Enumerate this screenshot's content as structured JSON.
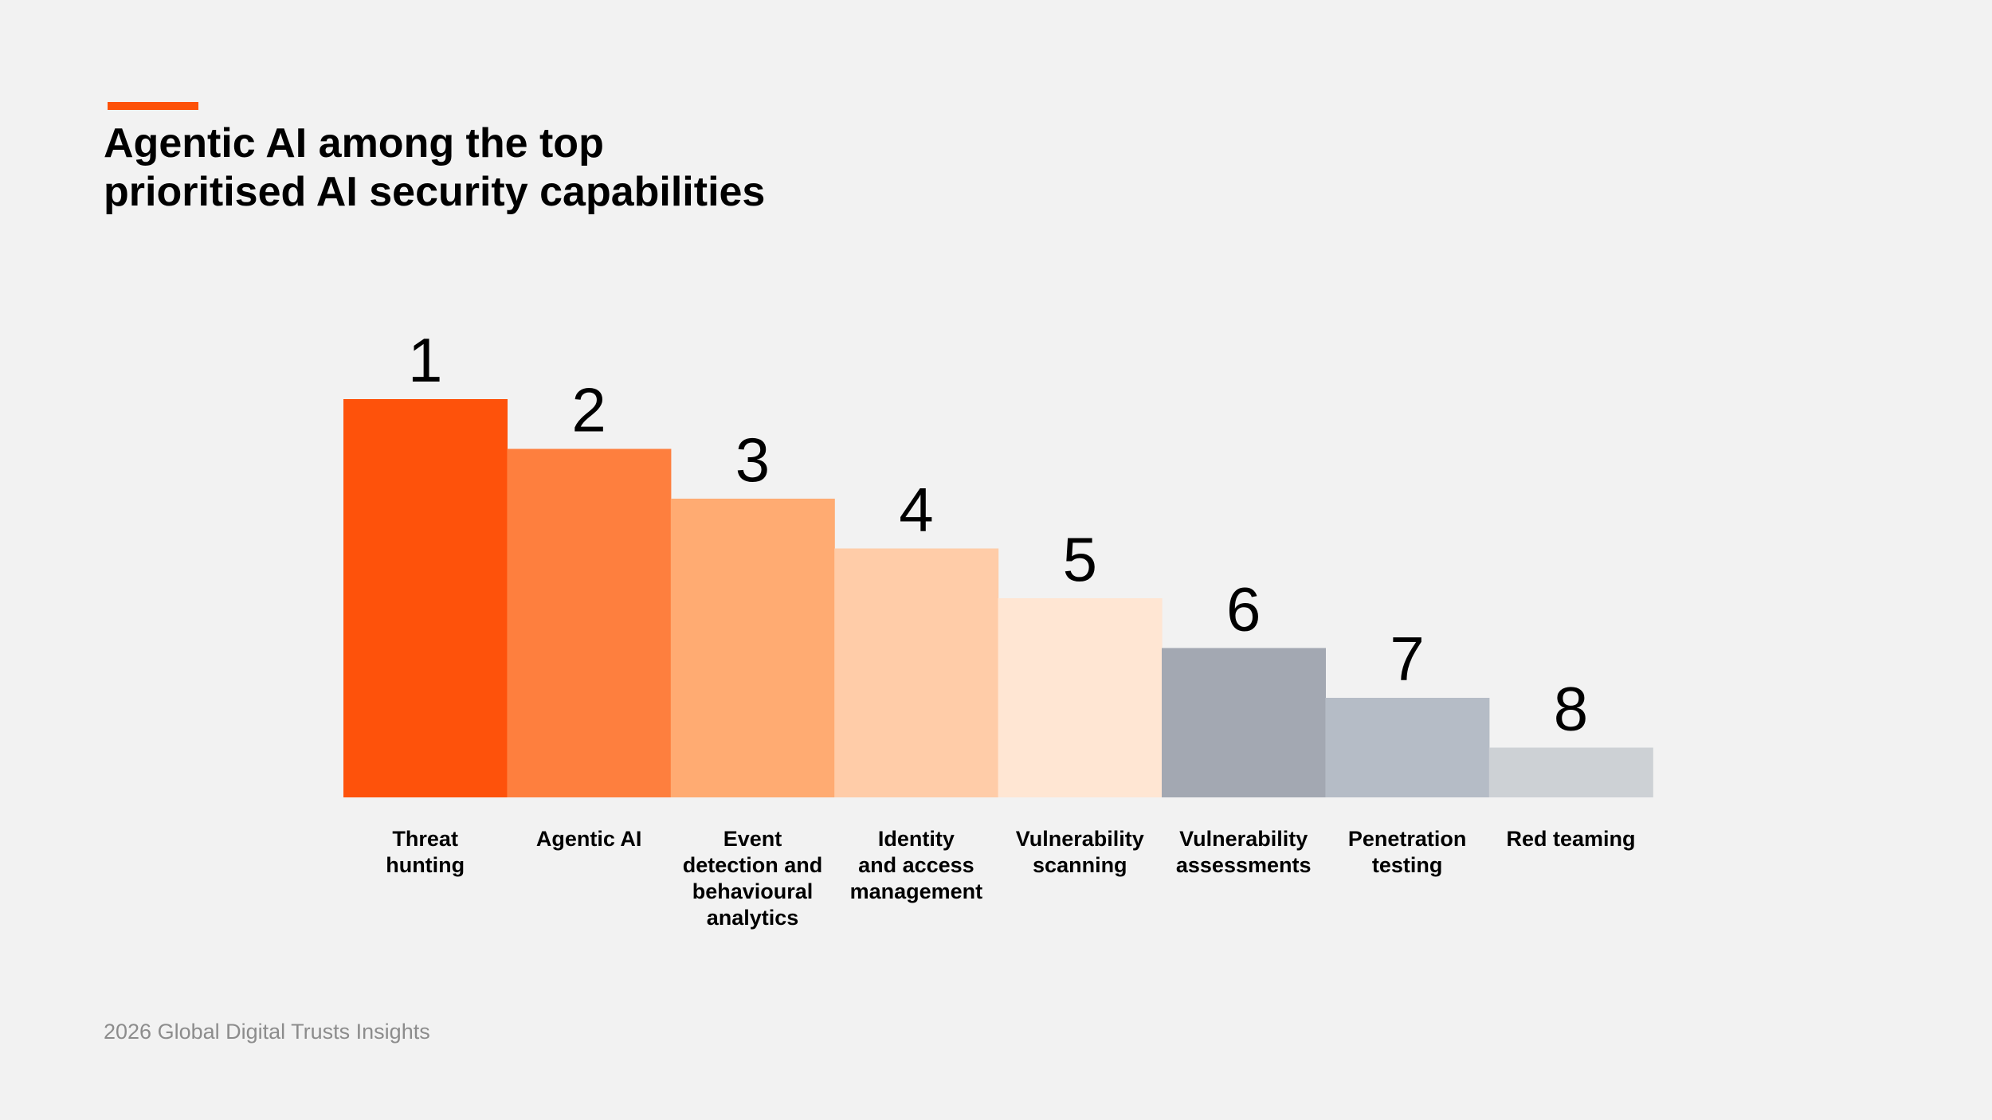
{
  "title_lines": [
    "Agentic AI among the top",
    "prioritised AI security capabilities"
  ],
  "footer": "2026 Global Digital Trusts Insights",
  "colors": {
    "accent": "#fd5108",
    "background": "#f2f2f2",
    "label": "#000000",
    "footer": "#8c8c8c"
  },
  "chart_data": {
    "type": "bar",
    "title": "Agentic AI among the top prioritised AI security capabilities",
    "xlabel": "",
    "ylabel": "",
    "ylim": [
      0,
      8
    ],
    "grid": false,
    "legend": "none",
    "categories": [
      [
        "Threat",
        "hunting"
      ],
      [
        "Agentic AI"
      ],
      [
        "Event",
        "detection and",
        "behavioural",
        "analytics"
      ],
      [
        "Identity",
        "and access",
        "management"
      ],
      [
        "Vulnerability",
        "scanning"
      ],
      [
        "Vulnerability",
        "assessments"
      ],
      [
        "Penetration",
        "testing"
      ],
      [
        "Red teaming"
      ]
    ],
    "ranks": [
      1,
      2,
      3,
      4,
      5,
      6,
      7,
      8
    ],
    "values": [
      8,
      7,
      6,
      5,
      4,
      3,
      2,
      1
    ],
    "rank_labels": [
      "1",
      "2",
      "3",
      "4",
      "5",
      "6",
      "7",
      "8"
    ],
    "bar_colors": [
      "#fe520b",
      "#fe7f3e",
      "#ffab72",
      "#ffcca8",
      "#ffe6d3",
      "#a3a8b2",
      "#b5bcc6",
      "#cdd1d5"
    ]
  }
}
